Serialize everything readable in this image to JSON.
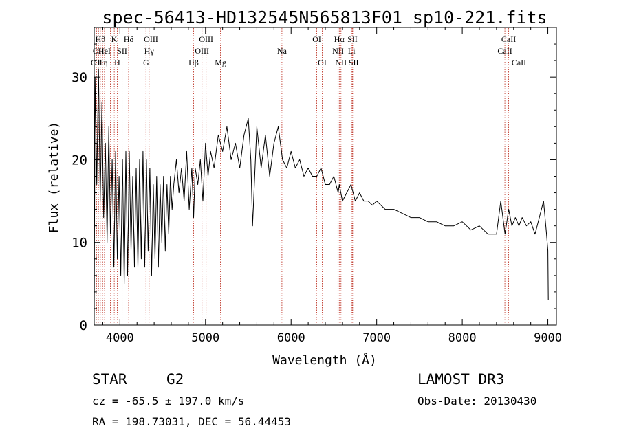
{
  "chart_data": {
    "type": "line",
    "title": "spec-56413-HD132545N565813F01_sp10-221.fits",
    "xlabel": "Wavelength (Å)",
    "ylabel": "Flux (relative)",
    "xlim": [
      3700,
      9100
    ],
    "ylim": [
      0,
      36
    ],
    "xticks": [
      4000,
      5000,
      6000,
      7000,
      8000,
      9000
    ],
    "xtick_labels": [
      "4000",
      "5000",
      "6000",
      "7000",
      "8000",
      "9000"
    ],
    "yticks": [
      0,
      10,
      20,
      30
    ],
    "ytick_labels": [
      "0",
      "10",
      "20",
      "30"
    ],
    "series": [
      {
        "name": "spectrum",
        "x": [
          3700,
          3710,
          3730,
          3750,
          3770,
          3790,
          3810,
          3830,
          3850,
          3870,
          3890,
          3910,
          3930,
          3950,
          3970,
          3990,
          4010,
          4030,
          4050,
          4070,
          4090,
          4110,
          4130,
          4150,
          4170,
          4190,
          4210,
          4230,
          4250,
          4270,
          4290,
          4310,
          4330,
          4350,
          4370,
          4390,
          4410,
          4430,
          4450,
          4470,
          4490,
          4510,
          4530,
          4550,
          4570,
          4590,
          4610,
          4630,
          4660,
          4690,
          4720,
          4750,
          4780,
          4810,
          4840,
          4861,
          4880,
          4910,
          4940,
          4970,
          5000,
          5030,
          5060,
          5100,
          5150,
          5200,
          5250,
          5300,
          5350,
          5400,
          5450,
          5500,
          5530,
          5550,
          5600,
          5650,
          5700,
          5750,
          5800,
          5850,
          5900,
          5950,
          6000,
          6050,
          6100,
          6150,
          6200,
          6250,
          6300,
          6350,
          6400,
          6450,
          6500,
          6550,
          6563,
          6600,
          6650,
          6700,
          6750,
          6800,
          6850,
          6900,
          6950,
          7000,
          7100,
          7200,
          7300,
          7400,
          7500,
          7600,
          7700,
          7800,
          7900,
          8000,
          8100,
          8200,
          8300,
          8400,
          8450,
          8500,
          8542,
          8580,
          8620,
          8662,
          8700,
          8750,
          8800,
          8850,
          8900,
          8950,
          8980,
          9000,
          9005
        ],
        "values": [
          1,
          30,
          17,
          31,
          15,
          27,
          13,
          22,
          10,
          24,
          11,
          20,
          7,
          21,
          8,
          18,
          6,
          20,
          5,
          21,
          6,
          21,
          9,
          18,
          7,
          19,
          7,
          20,
          8,
          21,
          7,
          20,
          9,
          19,
          6,
          17,
          8,
          18,
          7,
          17,
          10,
          18,
          9,
          17,
          11,
          18,
          14,
          17,
          20,
          16,
          19,
          15,
          21,
          14,
          19,
          13,
          19,
          17,
          20,
          15,
          22,
          18,
          21,
          19,
          23,
          21,
          24,
          20,
          22,
          19,
          23,
          25,
          20,
          12,
          24,
          19,
          23,
          18,
          22,
          24,
          20,
          19,
          21,
          19,
          20,
          18,
          19,
          18,
          18,
          19,
          17,
          17,
          18,
          16,
          17,
          15,
          16,
          17,
          15,
          16,
          15,
          15,
          14.5,
          15,
          14,
          14,
          13.5,
          13,
          13,
          12.5,
          12.5,
          12,
          12,
          12.5,
          11.5,
          12,
          11,
          11,
          15,
          11,
          14,
          12,
          13,
          12,
          13,
          12,
          12.5,
          11,
          13,
          15,
          11.5,
          9,
          3
        ]
      }
    ],
    "reference_lines": [
      {
        "wavelength": 3727,
        "label": "OII",
        "row": 2
      },
      {
        "wavelength": 3750,
        "label": "OII",
        "row": 1
      },
      {
        "wavelength": 3771,
        "label": "Hθ",
        "row": 0
      },
      {
        "wavelength": 3798,
        "label": "Hη",
        "row": 2
      },
      {
        "wavelength": 3820,
        "label": "HeI",
        "row": 1
      },
      {
        "wavelength": 3889,
        "label": "",
        "row": -1
      },
      {
        "wavelength": 3934,
        "label": "K",
        "row": 0
      },
      {
        "wavelength": 3969,
        "label": "H",
        "row": 2
      },
      {
        "wavelength": 4026,
        "label": "SII",
        "row": 1
      },
      {
        "wavelength": 4102,
        "label": "Hδ",
        "row": 0
      },
      {
        "wavelength": 4305,
        "label": "G",
        "row": 2
      },
      {
        "wavelength": 4341,
        "label": "Hγ",
        "row": 1
      },
      {
        "wavelength": 4363,
        "label": "OIII",
        "row": 0
      },
      {
        "wavelength": 4861,
        "label": "Hβ",
        "row": 2
      },
      {
        "wavelength": 4959,
        "label": "OIII",
        "row": 1
      },
      {
        "wavelength": 5007,
        "label": "OIII",
        "row": 0
      },
      {
        "wavelength": 5175,
        "label": "Mg",
        "row": 2
      },
      {
        "wavelength": 5893,
        "label": "Na",
        "row": 1
      },
      {
        "wavelength": 6300,
        "label": "OI",
        "row": 0
      },
      {
        "wavelength": 6364,
        "label": "OI",
        "row": 2
      },
      {
        "wavelength": 6548,
        "label": "NII",
        "row": 1
      },
      {
        "wavelength": 6563,
        "label": "Hα",
        "row": 0
      },
      {
        "wavelength": 6583,
        "label": "NII",
        "row": 2
      },
      {
        "wavelength": 6707,
        "label": "Li",
        "row": 1
      },
      {
        "wavelength": 6717,
        "label": "SII",
        "row": 0
      },
      {
        "wavelength": 6731,
        "label": "SII",
        "row": 2
      },
      {
        "wavelength": 8498,
        "label": "CaII",
        "row": 1
      },
      {
        "wavelength": 8542,
        "label": "CaII",
        "row": 0
      },
      {
        "wavelength": 8662,
        "label": "CaII",
        "row": 2
      }
    ]
  },
  "info": {
    "object_class": "STAR",
    "subclass": "G2",
    "survey": "LAMOST DR3",
    "cz": "cz = -65.5 ± 197.0 km/s",
    "obs_date": "Obs-Date: 20130430",
    "coords": "RA = 198.73031, DEC =  56.44453"
  }
}
